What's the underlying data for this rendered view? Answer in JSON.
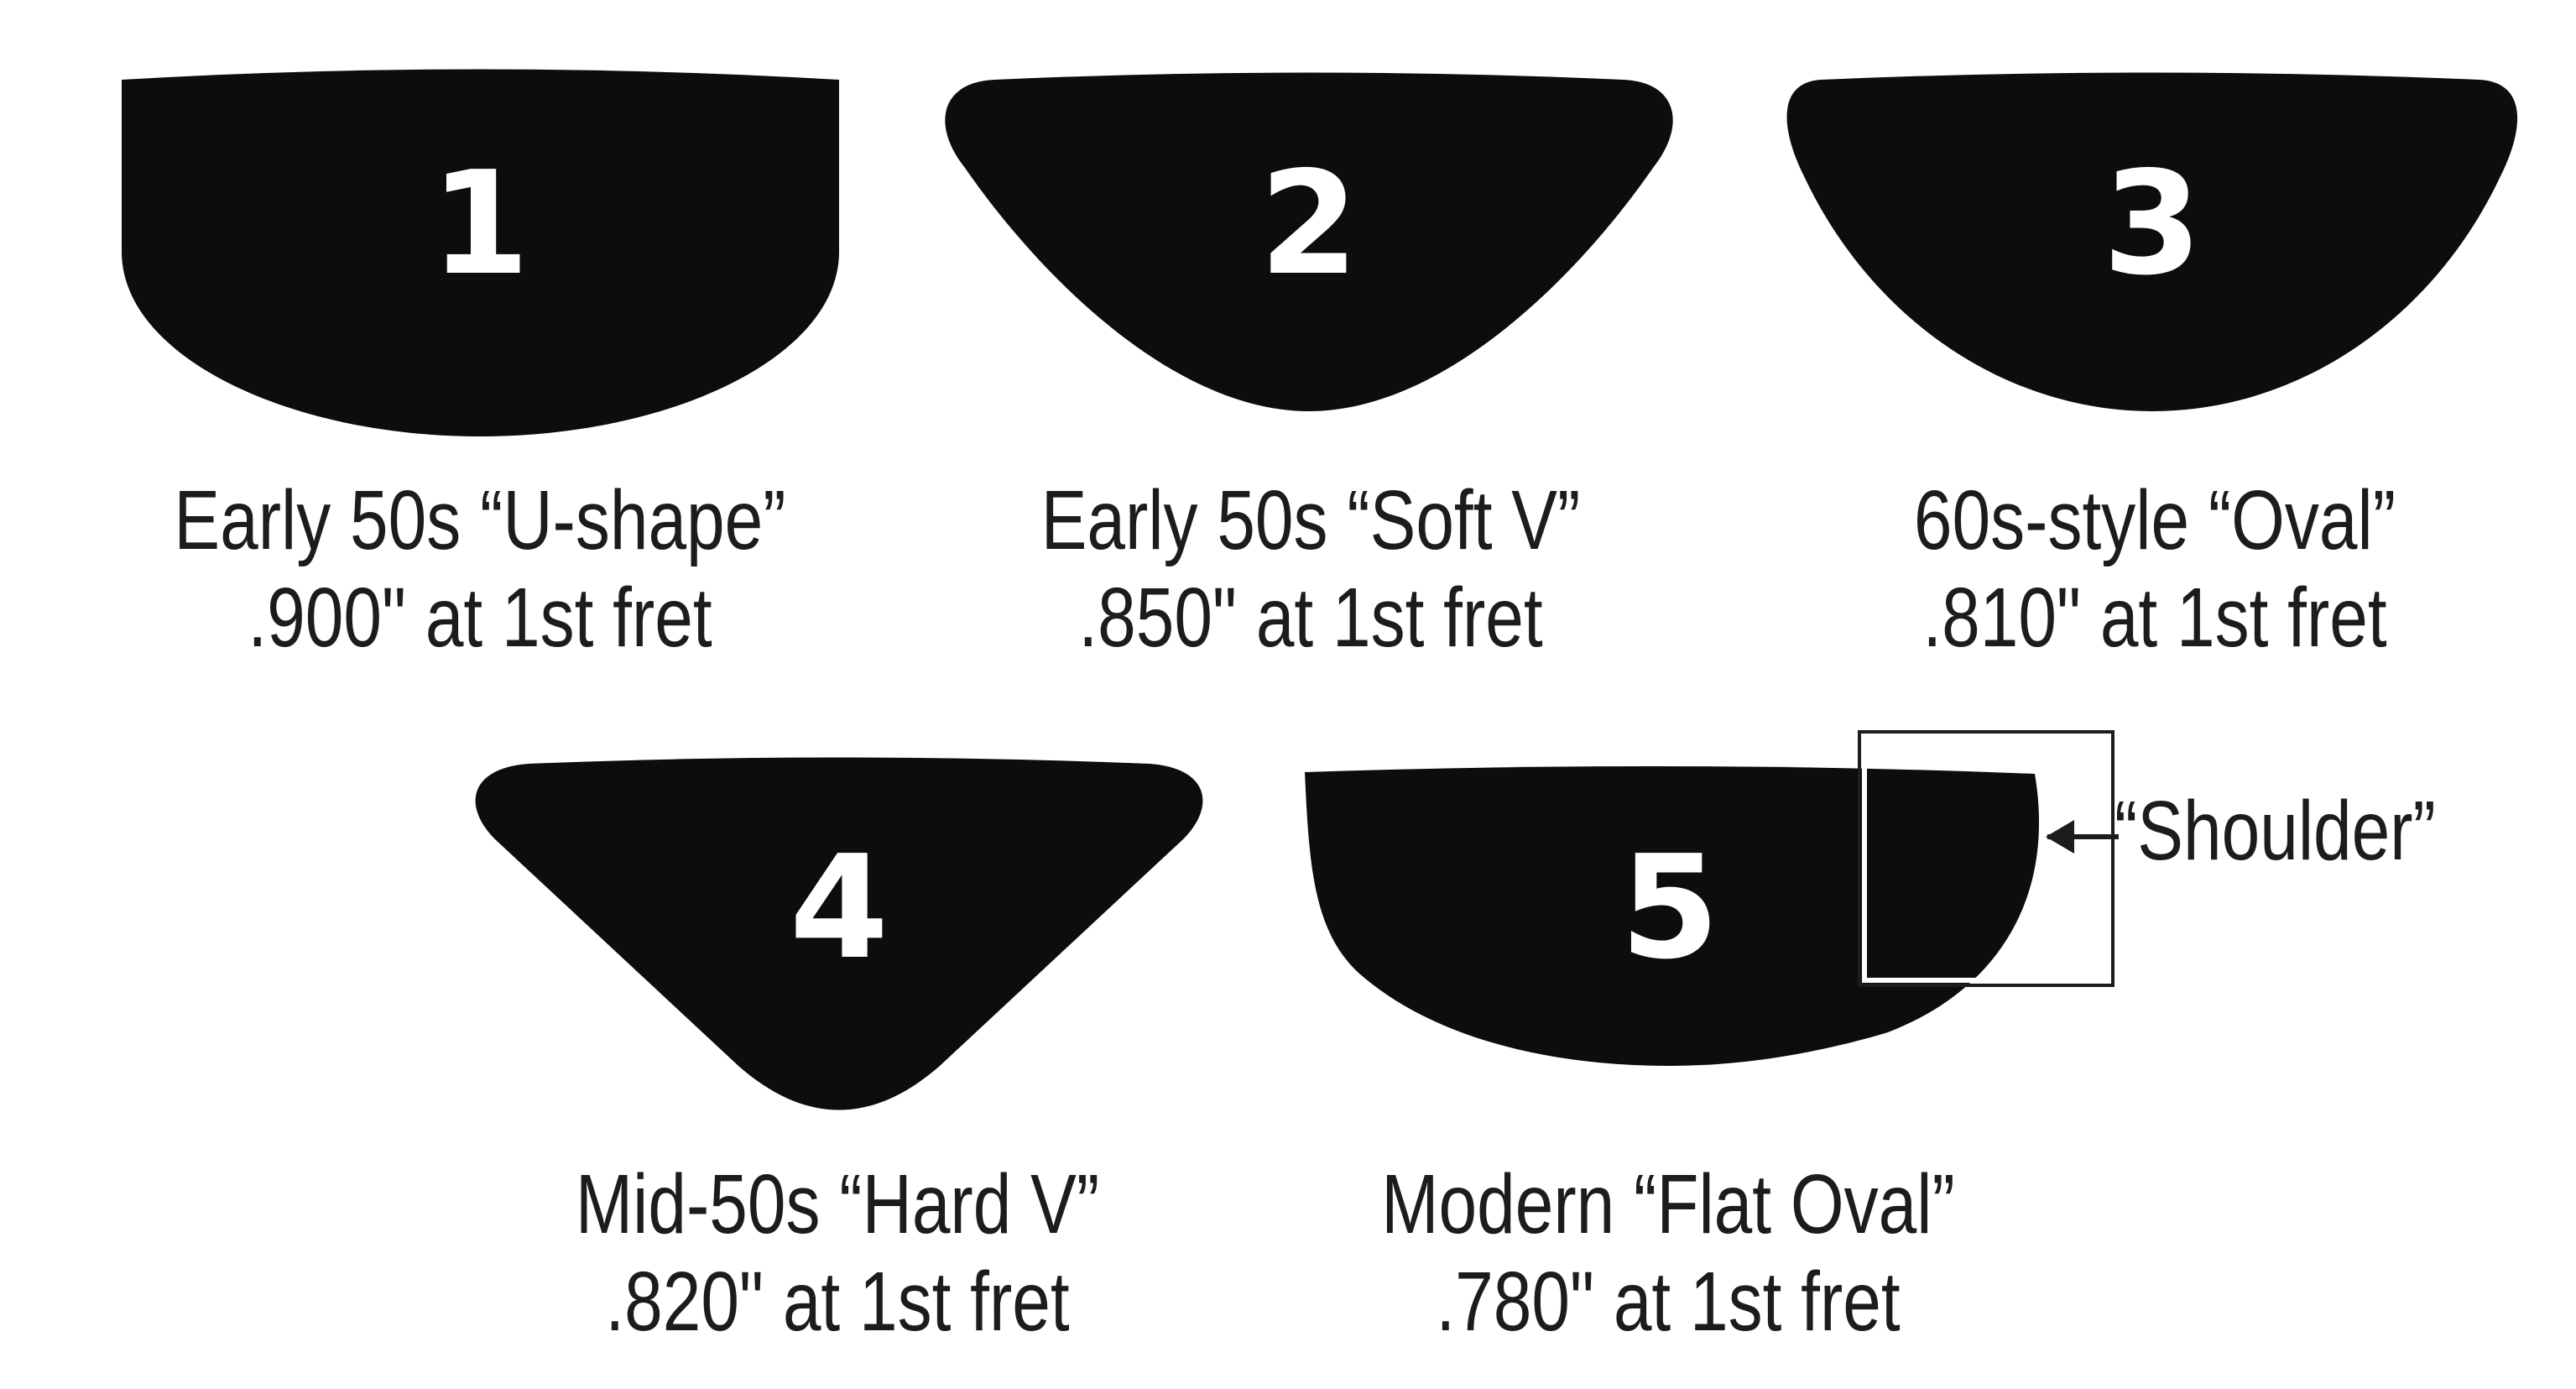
{
  "profiles": [
    {
      "number": "1",
      "name": "Early 50s “U-shape”",
      "thickness": ".900\" at 1st fret"
    },
    {
      "number": "2",
      "name": "Early 50s “Soft V”",
      "thickness": ".850\" at 1st fret"
    },
    {
      "number": "3",
      "name": "60s-style “Oval”",
      "thickness": ".810\" at 1st fret"
    },
    {
      "number": "4",
      "name": "Mid-50s “Hard V”",
      "thickness": ".820\" at 1st fret"
    },
    {
      "number": "5",
      "name": "Modern “Flat Oval”",
      "thickness": ".780\" at 1st fret"
    }
  ],
  "shoulder_label": "“Shoulder”",
  "colors": {
    "shape_fill": "#0d0d0d",
    "number_fill": "#ffffff",
    "text": "#1c1c1c",
    "background": "#ffffff"
  }
}
